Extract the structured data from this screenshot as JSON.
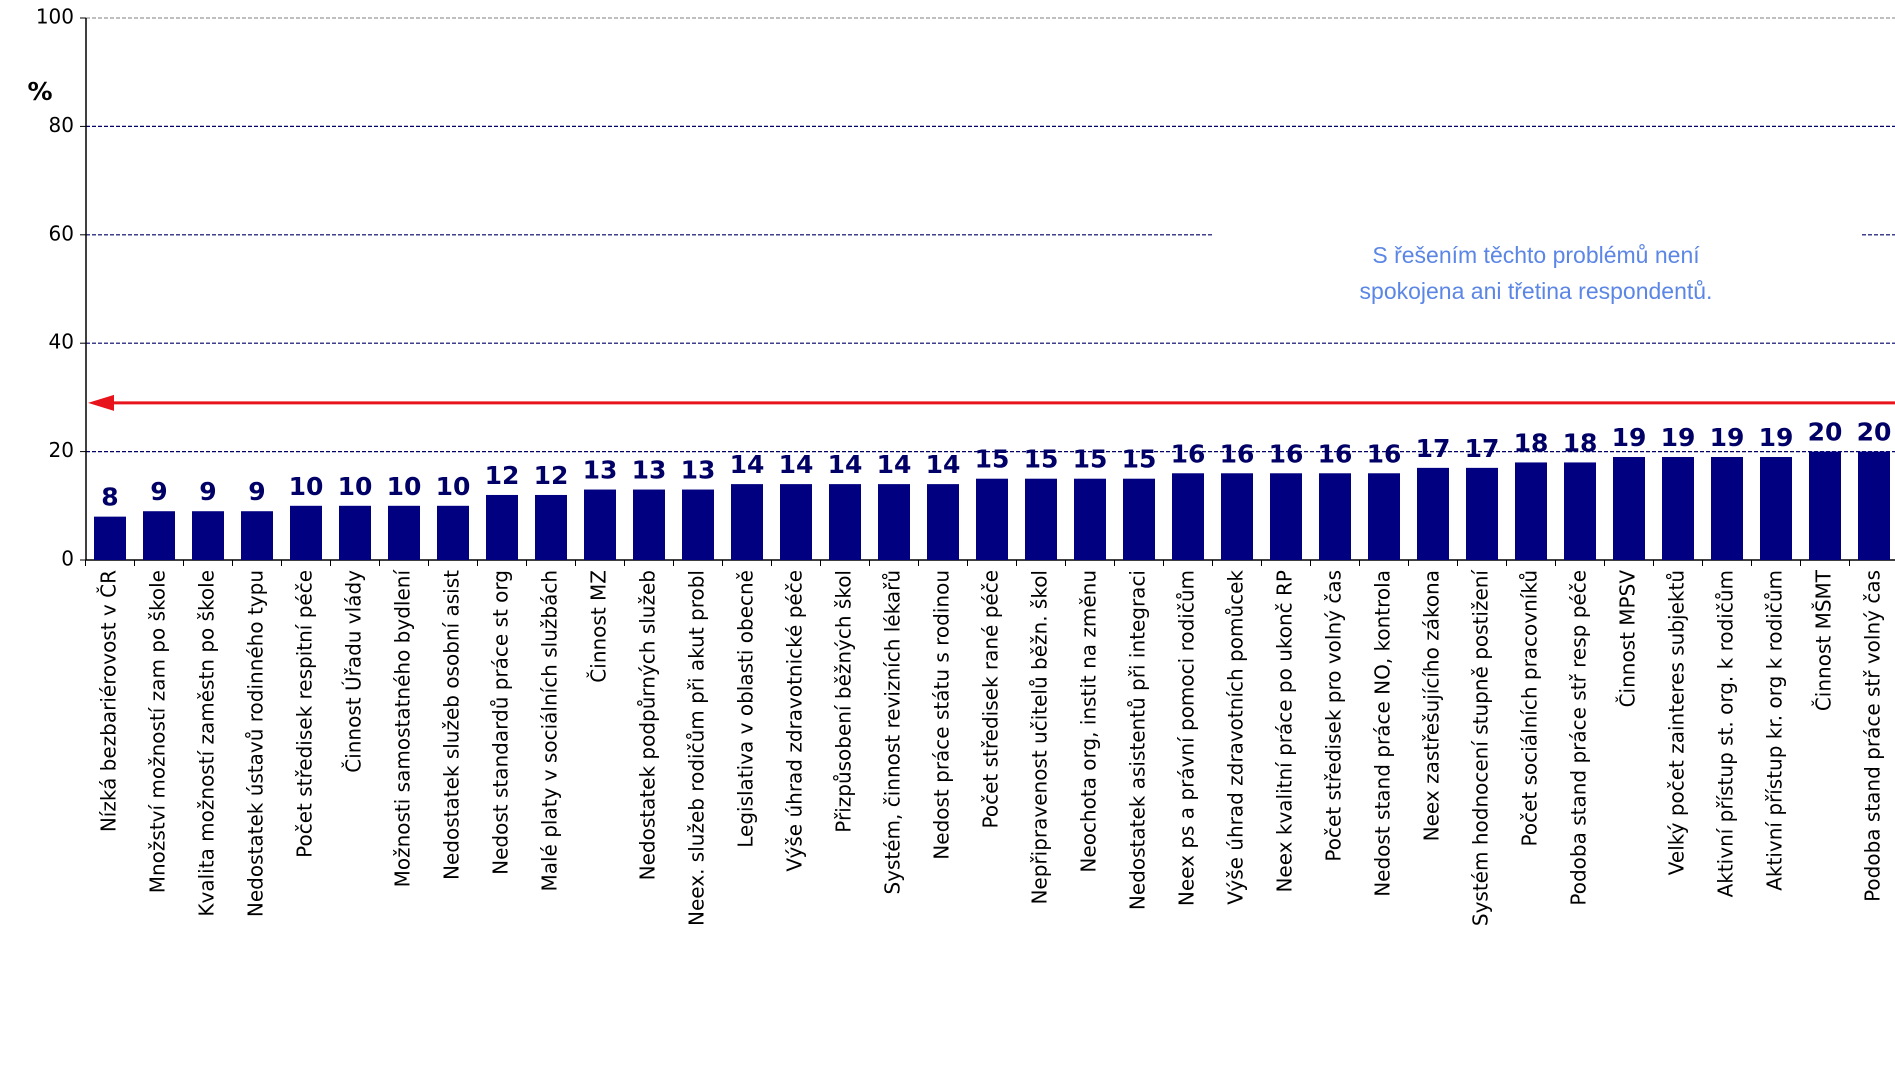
{
  "chart_data": {
    "type": "bar",
    "y_label": "%",
    "annotation": [
      "S řešením těchto problémů není",
      "spokojena ani třetina respondentů."
    ],
    "reference_line": 29,
    "color": "#000080",
    "grid": true,
    "ylim": [
      0,
      100
    ],
    "yticks": [
      0,
      20,
      40,
      60,
      80,
      100
    ],
    "categories": [
      "Nízká bezbariérovost v ČR",
      "Množství možností zam po škole",
      "Kvalita možností zaměstn po škole",
      "Nedostatek ústavů rodinného typu",
      "Počet středisek respitní péče",
      "Činnost Úřadu vlády",
      "Možnosti samostatného bydlení",
      "Nedostatek služeb osobní asist",
      "Nedost standardů práce st org",
      "Malé platy v sociálních službách",
      "Činnost MZ",
      "Nedostatek podpůrných služeb",
      "Neex. služeb rodičům při akut probl",
      "Legislativa v oblasti obecně",
      "Výše úhrad zdravotnické péče",
      "Přizpůsobení běžných škol",
      "Systém, činnost revizních lékařů",
      "Nedost práce státu s rodinou",
      "Počet středisek rané péče",
      "Nepřipravenost učitelů běžn. škol",
      "Neochota org, instit na změnu",
      "Nedostatek asistentů při integraci",
      "Neex ps a právní pomoci rodičům",
      "Výše úhrad zdravotních pomůcek",
      "Neex kvalitní práce po ukonč RP",
      "Počet středisek pro volný čas",
      "Nedost stand práce NO, kontrola",
      "Neex zastřešujícího zákona",
      "Systém hodnocení stupně postižení",
      "Počet sociálních pracovníků",
      "Podoba stand práce stř resp péče",
      "Činnost MPSV",
      "Velký počet zainteres subjektů",
      "Aktivní přístup st. org. k rodičům",
      "Aktivní přístup kr. org k rodičům",
      "Činnost MŠMT",
      "Podoba stand práce stř volný čas"
    ],
    "values": [
      8,
      9,
      9,
      9,
      10,
      10,
      10,
      10,
      12,
      12,
      13,
      13,
      13,
      14,
      14,
      14,
      14,
      14,
      15,
      15,
      15,
      15,
      16,
      16,
      16,
      16,
      16,
      17,
      17,
      18,
      18,
      19,
      19,
      19,
      19,
      20,
      20
    ]
  }
}
